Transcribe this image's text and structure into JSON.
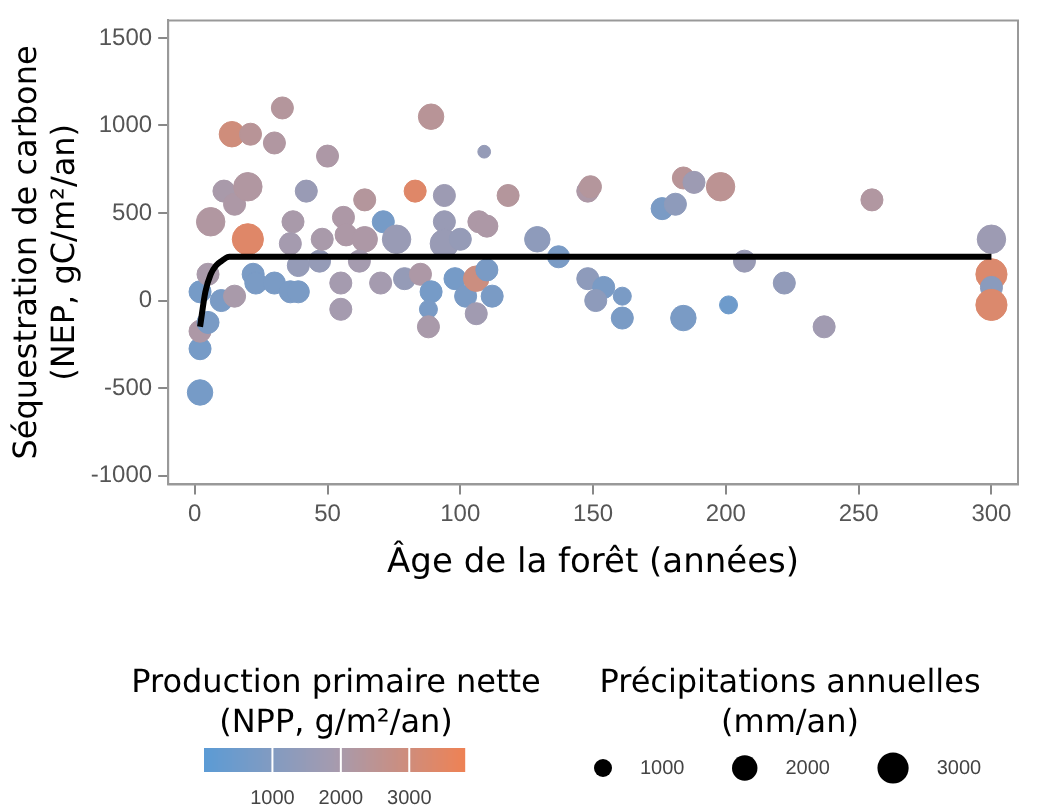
{
  "chart_data": {
    "type": "bubble",
    "xlabel": "Âge de la forêt (années)",
    "ylabel": "Séquestration de carbone\n(NEP, gC/m²/an)",
    "clabel": "Production primaire nette\n(NPP, g/m²/an)",
    "legend_title": "Précipitations annuelles\n(mm/an)",
    "xlim": [
      -10,
      310
    ],
    "ylim": [
      -1050,
      1600
    ],
    "xticks": [
      0,
      50,
      100,
      150,
      200,
      250,
      300
    ],
    "yticks": [
      -1000,
      -500,
      0,
      500,
      1000,
      1500
    ],
    "grid": false,
    "clim": [
      0,
      3800
    ],
    "cticks": [
      1000,
      2000,
      3000
    ],
    "size_legend": [
      1000,
      2000,
      3000
    ],
    "series": [
      {
        "x": [
          2,
          2,
          2,
          2,
          5,
          5,
          6,
          10,
          11,
          14,
          15,
          15,
          20,
          20,
          21,
          22,
          23,
          30,
          33,
          30,
          36,
          39,
          37,
          36,
          42,
          50,
          39,
          47,
          48,
          55,
          55,
          56,
          57,
          64,
          64,
          62,
          70,
          71,
          76,
          79,
          83,
          85,
          89,
          88,
          88,
          89,
          94,
          94,
          94,
          98,
          100,
          102,
          106,
          106,
          107,
          109,
          110,
          110,
          112,
          118,
          129,
          137,
          148,
          149,
          148,
          154,
          151,
          161,
          161,
          176,
          181,
          184,
          188,
          198,
          184,
          201,
          207,
          222,
          237,
          255,
          300,
          300,
          300,
          300
        ],
        "values": [
          -525,
          -275,
          -175,
          50,
          -125,
          150,
          450,
          0,
          625,
          950,
          25,
          550,
          350,
          650,
          950,
          150,
          100,
          900,
          1100,
          100,
          50,
          50,
          450,
          325,
          625,
          825,
          200,
          225,
          350,
          -50,
          100,
          475,
          375,
          575,
          350,
          225,
          100,
          450,
          350,
          125,
          625,
          150,
          50,
          -50,
          -150,
          1050,
          600,
          450,
          325,
          125,
          350,
          25,
          -75,
          125,
          450,
          850,
          425,
          175,
          25,
          600,
          350,
          250,
          625,
          650,
          125,
          75,
          0,
          25,
          -100,
          525,
          550,
          700,
          675,
          650,
          -100,
          -25,
          225,
          100,
          -150,
          575,
          350,
          150,
          75,
          -25
        ],
        "sizes": [
          2000,
          1500,
          1500,
          1500,
          1500,
          1500,
          2500,
          1500,
          1500,
          2000,
          1500,
          1500,
          3000,
          2500,
          1500,
          1500,
          1500,
          1500,
          1500,
          1500,
          1500,
          1500,
          1500,
          1500,
          1500,
          1500,
          1500,
          1500,
          1500,
          1500,
          1500,
          1500,
          1500,
          1500,
          2000,
          1500,
          1500,
          1500,
          2500,
          1500,
          1500,
          1500,
          1500,
          1000,
          1500,
          2000,
          1500,
          1500,
          2500,
          1500,
          1500,
          1500,
          1500,
          2000,
          1500,
          500,
          1500,
          1500,
          1500,
          1500,
          2000,
          1500,
          1500,
          1500,
          1500,
          1500,
          1500,
          1000,
          1500,
          1500,
          1500,
          1500,
          1500,
          2500,
          2000,
          1000,
          1500,
          1500,
          1500,
          1500,
          2500,
          3000,
          1500,
          3000
        ],
        "cvalues": [
          700,
          700,
          2100,
          700,
          800,
          2000,
          2200,
          800,
          2000,
          3000,
          2000,
          2100,
          3400,
          2200,
          2400,
          800,
          800,
          2200,
          2300,
          800,
          800,
          800,
          2000,
          1900,
          1600,
          2100,
          1500,
          1500,
          2000,
          1900,
          1900,
          2100,
          2100,
          2300,
          2100,
          1900,
          1900,
          700,
          1600,
          1500,
          3400,
          2100,
          700,
          800,
          2000,
          2400,
          1700,
          1600,
          1600,
          700,
          1500,
          800,
          1800,
          2900,
          2100,
          1500,
          2100,
          800,
          800,
          2300,
          1300,
          800,
          2100,
          2300,
          1300,
          800,
          1300,
          800,
          800,
          800,
          1300,
          2400,
          1700,
          2500,
          800,
          500,
          1600,
          1400,
          1800,
          2200,
          1700,
          3300,
          1200,
          3300
        ],
        "colors": [
          "#769bc7",
          "#769bc7",
          "#ad98a6",
          "#769bc7",
          "#7a9bc5",
          "#a99aaa",
          "#b197a1",
          "#7a9bc5",
          "#a99aaa",
          "#cf8d7b",
          "#a99aaa",
          "#ad98a6",
          "#df8768",
          "#b197a1",
          "#b89497",
          "#7a9bc5",
          "#7a9bc5",
          "#b197a1",
          "#b4969c",
          "#7a9bc5",
          "#7a9bc5",
          "#7a9bc5",
          "#a99aaa",
          "#a59baf",
          "#999bb5",
          "#ad98a6",
          "#959bb7",
          "#959bb7",
          "#a99aaa",
          "#a59baf",
          "#a59baf",
          "#ad98a6",
          "#ad98a6",
          "#b4969c",
          "#ad98a6",
          "#a59baf",
          "#a59baf",
          "#769bc7",
          "#999bb5",
          "#959bb7",
          "#df8768",
          "#ad98a6",
          "#769bc7",
          "#7a9bc5",
          "#a99aaa",
          "#b89497",
          "#9d9bb3",
          "#999bb5",
          "#999bb5",
          "#769bc7",
          "#959bb7",
          "#7a9bc5",
          "#a19bb1",
          "#cb8e80",
          "#ad98a6",
          "#959bb7",
          "#ad98a6",
          "#7a9bc5",
          "#7a9bc5",
          "#b4969c",
          "#8e9bbb",
          "#7a9bc5",
          "#ad98a6",
          "#b4969c",
          "#8e9bbb",
          "#7a9bc5",
          "#8e9bbb",
          "#7a9bc5",
          "#7a9bc5",
          "#7a9bc5",
          "#8e9bbb",
          "#b89497",
          "#9d9bb3",
          "#bc9393",
          "#7a9bc5",
          "#6e9bcb",
          "#999bb5",
          "#929bb9",
          "#a19bb1",
          "#b197a1",
          "#9d9bb3",
          "#db896d",
          "#8a9bbd",
          "#db896d"
        ]
      },
      {
        "type": "line",
        "x": [
          2,
          4,
          6,
          8,
          10,
          13,
          17,
          25,
          100,
          300
        ],
        "values": [
          -150,
          50,
          150,
          200,
          225,
          250,
          250,
          250,
          250,
          250
        ],
        "color": "#000000"
      }
    ]
  }
}
